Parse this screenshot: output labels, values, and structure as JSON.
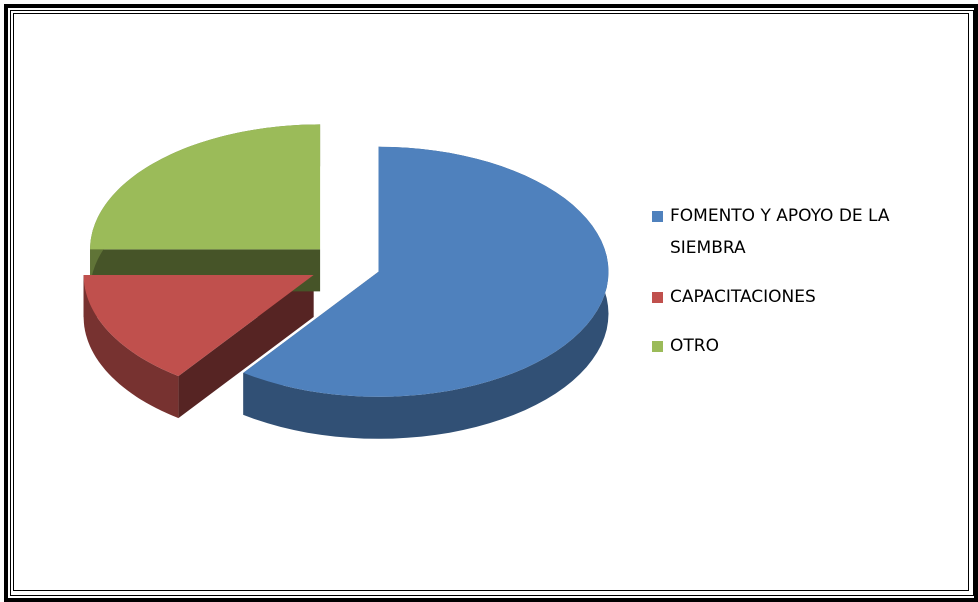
{
  "chart_data": {
    "type": "pie",
    "three_d": true,
    "exploded": true,
    "categories": [
      "FOMENTO Y APOYO DE LA SIEMBRA",
      "CAPACITACIONES",
      "OTRO"
    ],
    "values": [
      60,
      15,
      25
    ],
    "colors": [
      "#4f81bd",
      "#c0504d",
      "#9bbb59"
    ],
    "legend": "right"
  }
}
